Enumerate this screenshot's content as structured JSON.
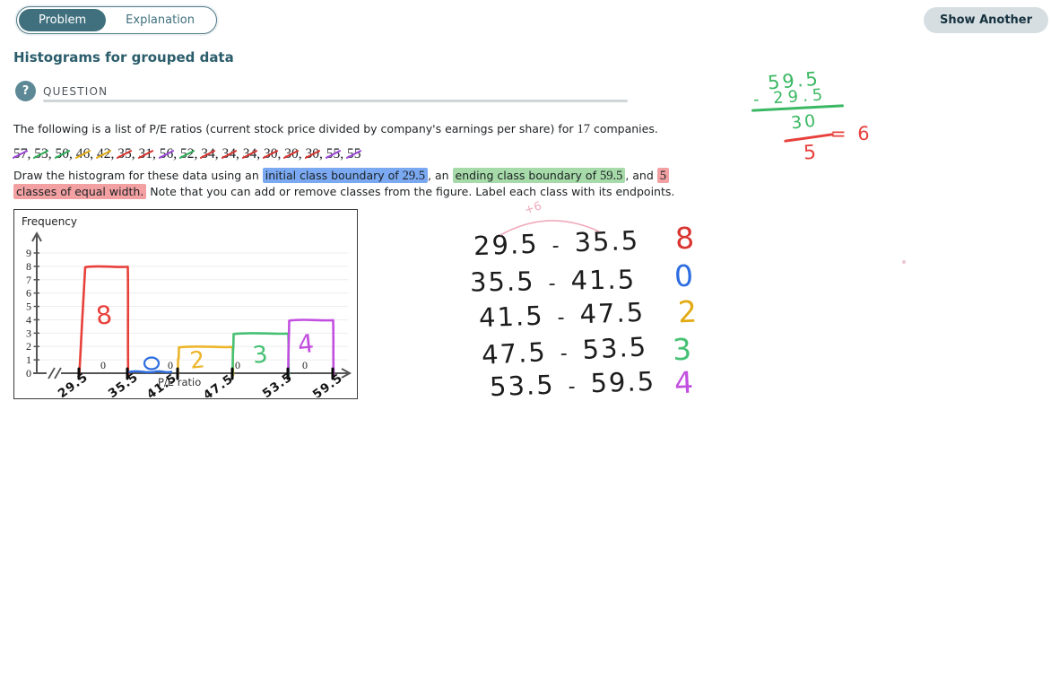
{
  "header": {
    "tabs": [
      {
        "label": "Problem",
        "active": true
      },
      {
        "label": "Explanation",
        "active": false
      }
    ],
    "show_another_label": "Show Another"
  },
  "page_title": "Histograms for grouped data",
  "question": {
    "section_label": "QUESTION",
    "help_icon": "?",
    "intro_runs": [
      {
        "t": "The following is a list of P/E ratios (current stock price divided by company's earnings per share) for "
      },
      {
        "t": "17",
        "serif": true
      },
      {
        "t": " companies."
      }
    ],
    "data_values": [
      {
        "v": "57",
        "strike": "purple"
      },
      {
        "v": "53",
        "strike": "green"
      },
      {
        "v": "50",
        "strike": "green"
      },
      {
        "v": "46",
        "strike": "yellow"
      },
      {
        "v": "42",
        "strike": "yellow"
      },
      {
        "v": "35",
        "strike": "red"
      },
      {
        "v": "31",
        "strike": "red"
      },
      {
        "v": "56",
        "strike": "purple"
      },
      {
        "v": "52",
        "strike": "green"
      },
      {
        "v": "34",
        "strike": "red"
      },
      {
        "v": "34",
        "strike": "red"
      },
      {
        "v": "34",
        "strike": "red"
      },
      {
        "v": "30",
        "strike": "red"
      },
      {
        "v": "30",
        "strike": "red"
      },
      {
        "v": "30",
        "strike": "red"
      },
      {
        "v": "55",
        "strike": "purple"
      },
      {
        "v": "55",
        "strike": "purple"
      }
    ],
    "instruction_line1": [
      {
        "runs": [
          {
            "t": "Draw the histogram for these data using an "
          }
        ]
      },
      {
        "highlight": "blue",
        "runs": [
          {
            "t": "initial class boundary of "
          },
          {
            "t": "29.5",
            "serif": true
          }
        ]
      },
      {
        "runs": [
          {
            "t": ", an "
          }
        ]
      },
      {
        "highlight": "green",
        "runs": [
          {
            "t": "ending class boundary of "
          },
          {
            "t": "59.5",
            "serif": true
          }
        ]
      },
      {
        "runs": [
          {
            "t": ", and "
          }
        ]
      },
      {
        "highlight": "red",
        "runs": [
          {
            "t": "5",
            "serif": true
          }
        ]
      }
    ],
    "instruction_line2": [
      {
        "highlight": "red",
        "runs": [
          {
            "t": "classes of equal width."
          }
        ]
      },
      {
        "runs": [
          {
            "t": " Note that you can add or remove classes from the figure. Label each class with its endpoints."
          }
        ]
      }
    ]
  },
  "chart_data": {
    "type": "bar",
    "title": "",
    "ylabel": "Frequency",
    "xlabel": "P/E ratio",
    "ylim": [
      0,
      9
    ],
    "y_ticks": [
      0,
      1,
      2,
      3,
      4,
      5,
      6,
      7,
      8,
      9
    ],
    "grid": true,
    "axis_break": true,
    "class_boundaries": [
      "29.5",
      "35.5",
      "41.5",
      "47.5",
      "53.5",
      "59.5"
    ],
    "printed_zero_labels": [
      "0",
      "0",
      "0",
      "0"
    ],
    "series": [
      {
        "class": "29.5-35.5",
        "frequency": 8,
        "label": "8",
        "color": "#e8403a"
      },
      {
        "class": "35.5-41.5",
        "frequency": 0,
        "label": "0",
        "color": "#2e6de0"
      },
      {
        "class": "41.5-47.5",
        "frequency": 2,
        "label": "2",
        "color": "#edb52a"
      },
      {
        "class": "47.5-53.5",
        "frequency": 3,
        "label": "3",
        "color": "#46c174"
      },
      {
        "class": "53.5-59.5",
        "frequency": 4,
        "label": "4",
        "color": "#c24fe0"
      }
    ]
  },
  "annotations": {
    "width_calc": {
      "minuend": "59.5",
      "subtrahend": "- 29.5",
      "difference": "30",
      "divisor": "5",
      "result": "= 6"
    },
    "plus_six": "+6",
    "class_table": [
      {
        "from": "29.5",
        "dash": "-",
        "to": "35.5",
        "frequency": "8",
        "color": "#d9342f"
      },
      {
        "from": "35.5",
        "dash": "-",
        "to": "41.5",
        "frequency": "0",
        "color": "#2e6de0"
      },
      {
        "from": "41.5",
        "dash": "-",
        "to": "47.5",
        "frequency": "2",
        "color": "#e2ab13"
      },
      {
        "from": "47.5",
        "dash": "-",
        "to": "53.5",
        "frequency": "3",
        "color": "#46c174"
      },
      {
        "from": "53.5",
        "dash": "-",
        "to": "59.5",
        "frequency": "4",
        "color": "#c24fe0"
      }
    ]
  },
  "colors": {
    "accent_teal": "#40707e",
    "title_teal": "#2b5d6b",
    "hl_blue": "#7aa9f2",
    "hl_green": "#a6daa8",
    "hl_red": "#f2a0a2",
    "pink_ink": "#f0aabc",
    "calc_green": "#3bb863",
    "calc_red": "#e8413c",
    "mark_red": "#d9342f",
    "mark_green": "#2fae58",
    "mark_yellow": "#e2ab13",
    "mark_purple": "#9c47d8",
    "mark_blue": "#2e6de0"
  }
}
